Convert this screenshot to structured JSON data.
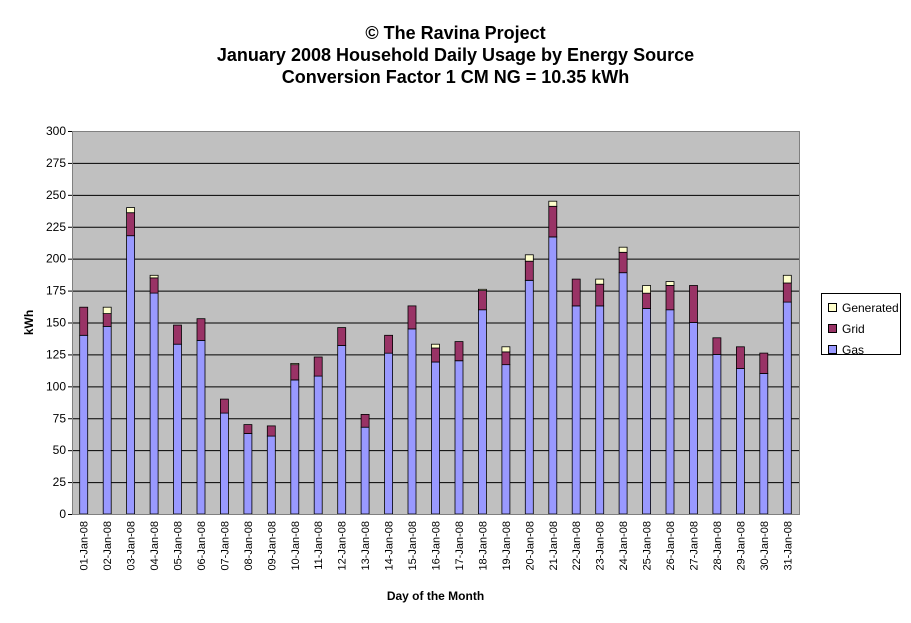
{
  "titles": {
    "line1": "© The Ravina Project",
    "line2": "January 2008 Household Daily Usage by Energy Source",
    "line3": "Conversion Factor 1 CM NG = 10.35 kWh"
  },
  "colors": {
    "plot_bg": "#C0C0C0",
    "gas": "#9999FF",
    "grid": "#993366",
    "generated": "#FFFFCC",
    "gridline": "#000000"
  },
  "chart_data": {
    "type": "bar",
    "stacked": true,
    "title": "© The Ravina Project",
    "xlabel": "Day of the Month",
    "ylabel": "kWh",
    "ylim": [
      0,
      300
    ],
    "yticks": [
      0,
      25,
      50,
      75,
      100,
      125,
      150,
      175,
      200,
      225,
      250,
      275,
      300
    ],
    "grid": true,
    "legend_position": "right",
    "categories": [
      "01-Jan-08",
      "02-Jan-08",
      "03-Jan-08",
      "04-Jan-08",
      "05-Jan-08",
      "06-Jan-08",
      "07-Jan-08",
      "08-Jan-08",
      "09-Jan-08",
      "10-Jan-08",
      "11-Jan-08",
      "12-Jan-08",
      "13-Jan-08",
      "14-Jan-08",
      "15-Jan-08",
      "16-Jan-08",
      "17-Jan-08",
      "18-Jan-08",
      "19-Jan-08",
      "20-Jan-08",
      "21-Jan-08",
      "22-Jan-08",
      "23-Jan-08",
      "24-Jan-08",
      "25-Jan-08",
      "26-Jan-08",
      "27-Jan-08",
      "28-Jan-08",
      "29-Jan-08",
      "30-Jan-08",
      "31-Jan-08"
    ],
    "series": [
      {
        "name": "Gas",
        "color": "#9999FF",
        "values": [
          140,
          147,
          218,
          173,
          133,
          136,
          79,
          63,
          61,
          105,
          108,
          132,
          68,
          126,
          145,
          119,
          120,
          160,
          117,
          183,
          217,
          163,
          163,
          189,
          161,
          160,
          150,
          125,
          114,
          110,
          166
        ]
      },
      {
        "name": "Grid",
        "color": "#993366",
        "values": [
          22,
          10,
          18,
          12,
          15,
          17,
          11,
          7,
          8,
          12,
          15,
          14,
          10,
          14,
          18,
          11,
          15,
          15,
          10,
          15,
          24,
          21,
          17,
          16,
          12,
          19,
          29,
          13,
          17,
          16,
          15
        ]
      },
      {
        "name": "Generated",
        "color": "#FFFFCC",
        "values": [
          0,
          5,
          4,
          2,
          0,
          0,
          0,
          0,
          0,
          1,
          0,
          0,
          0,
          0,
          0,
          3,
          0,
          1,
          4,
          5,
          4,
          0,
          4,
          4,
          6,
          3,
          0,
          0,
          0,
          0,
          6
        ]
      }
    ]
  }
}
